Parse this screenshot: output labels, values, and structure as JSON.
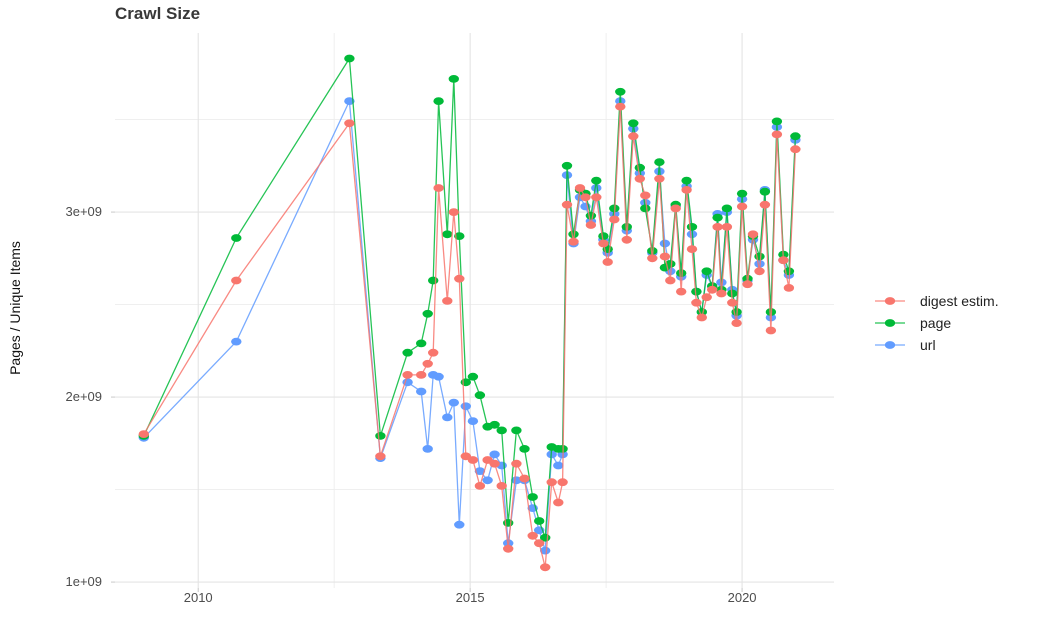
{
  "chart_data": {
    "type": "line",
    "title": "Crawl Size",
    "xlabel": "",
    "ylabel": "Pages / Unique Items",
    "unit": "pages (values in billions, i.e. value × 1e9)",
    "legend_position": "right",
    "grid": "on",
    "xlim": [
      2008.47,
      2021.69
    ],
    "ylim_billions": [
      0.968,
      3.968
    ],
    "x_ticks": [
      {
        "v": 2010,
        "label": "2010"
      },
      {
        "v": 2015,
        "label": "2015"
      },
      {
        "v": 2020,
        "label": "2020"
      }
    ],
    "x_minor_ticks": [
      2012.5,
      2017.5
    ],
    "y_ticks": [
      {
        "v": 1,
        "label": "1e+09"
      },
      {
        "v": 2,
        "label": "2e+09"
      },
      {
        "v": 3,
        "label": "3e+09"
      }
    ],
    "y_minor_ticks": [
      1.5,
      2.5,
      3.5
    ],
    "x": [
      2009.0,
      2010.7,
      2012.78,
      2013.35,
      2013.85,
      2014.1,
      2014.22,
      2014.32,
      2014.42,
      2014.58,
      2014.7,
      2014.8,
      2014.92,
      2015.05,
      2015.18,
      2015.32,
      2015.45,
      2015.58,
      2015.7,
      2015.85,
      2016.0,
      2016.15,
      2016.27,
      2016.38,
      2016.5,
      2016.62,
      2016.7,
      2016.78,
      2016.9,
      2017.02,
      2017.12,
      2017.22,
      2017.32,
      2017.45,
      2017.53,
      2017.65,
      2017.76,
      2017.88,
      2018.0,
      2018.12,
      2018.22,
      2018.35,
      2018.48,
      2018.58,
      2018.68,
      2018.78,
      2018.88,
      2018.98,
      2019.08,
      2019.16,
      2019.26,
      2019.35,
      2019.45,
      2019.55,
      2019.62,
      2019.72,
      2019.82,
      2019.9,
      2020.0,
      2020.1,
      2020.2,
      2020.32,
      2020.42,
      2020.53,
      2020.64,
      2020.76,
      2020.86,
      2020.98
    ],
    "series": [
      {
        "name": "digest estim.",
        "color": "#F8766D",
        "values_billions": [
          1.8,
          2.63,
          3.48,
          1.68,
          2.12,
          2.12,
          2.18,
          2.24,
          3.13,
          2.52,
          3.0,
          2.64,
          1.68,
          1.66,
          1.52,
          1.66,
          1.64,
          1.52,
          1.18,
          1.64,
          1.56,
          1.25,
          1.21,
          1.08,
          1.54,
          1.43,
          1.54,
          3.04,
          2.84,
          3.13,
          3.08,
          2.93,
          3.08,
          2.83,
          2.73,
          2.96,
          3.57,
          2.85,
          3.41,
          3.18,
          3.09,
          2.75,
          3.18,
          2.76,
          2.63,
          3.02,
          2.57,
          3.12,
          2.8,
          2.51,
          2.43,
          2.54,
          2.58,
          2.92,
          2.56,
          2.92,
          2.51,
          2.4,
          3.03,
          2.61,
          2.88,
          2.68,
          3.04,
          2.36,
          3.42,
          2.74,
          2.59,
          3.34
        ]
      },
      {
        "name": "page",
        "color": "#00BA38",
        "values_billions": [
          1.79,
          2.86,
          3.83,
          1.79,
          2.24,
          2.29,
          2.45,
          2.63,
          3.6,
          2.88,
          3.72,
          2.87,
          2.08,
          2.11,
          2.01,
          1.84,
          1.85,
          1.82,
          1.32,
          1.82,
          1.72,
          1.46,
          1.33,
          1.24,
          1.73,
          1.72,
          1.72,
          3.25,
          2.88,
          3.12,
          3.1,
          2.98,
          3.17,
          2.87,
          2.8,
          3.02,
          3.65,
          2.92,
          3.48,
          3.24,
          3.02,
          2.79,
          3.27,
          2.7,
          2.72,
          3.04,
          2.67,
          3.17,
          2.92,
          2.57,
          2.46,
          2.68,
          2.6,
          2.97,
          2.58,
          3.02,
          2.56,
          2.46,
          3.1,
          2.64,
          2.87,
          2.76,
          3.11,
          2.46,
          3.49,
          2.77,
          2.68,
          3.41
        ]
      },
      {
        "name": "url",
        "color": "#619CFF",
        "values_billions": [
          1.78,
          2.3,
          3.6,
          1.67,
          2.08,
          2.03,
          1.72,
          2.12,
          2.11,
          1.89,
          1.97,
          1.31,
          1.95,
          1.87,
          1.6,
          1.55,
          1.69,
          1.63,
          1.21,
          1.55,
          1.55,
          1.4,
          1.28,
          1.17,
          1.69,
          1.63,
          1.69,
          3.2,
          2.83,
          3.08,
          3.03,
          2.95,
          3.13,
          2.85,
          2.78,
          2.99,
          3.6,
          2.9,
          3.45,
          3.21,
          3.05,
          2.78,
          3.22,
          2.83,
          2.68,
          3.03,
          2.65,
          3.14,
          2.88,
          2.57,
          2.46,
          2.66,
          2.6,
          2.99,
          2.62,
          3.0,
          2.58,
          2.44,
          3.07,
          2.63,
          2.85,
          2.72,
          3.12,
          2.43,
          3.46,
          2.74,
          2.66,
          3.39
        ]
      }
    ],
    "colors": {
      "background": "#ffffff",
      "grid_major": "#e4e4e4",
      "grid_minor": "#ededed",
      "axis_text": "#4d4d4d",
      "title_text": "#383838",
      "legend_text": "#222222"
    }
  }
}
